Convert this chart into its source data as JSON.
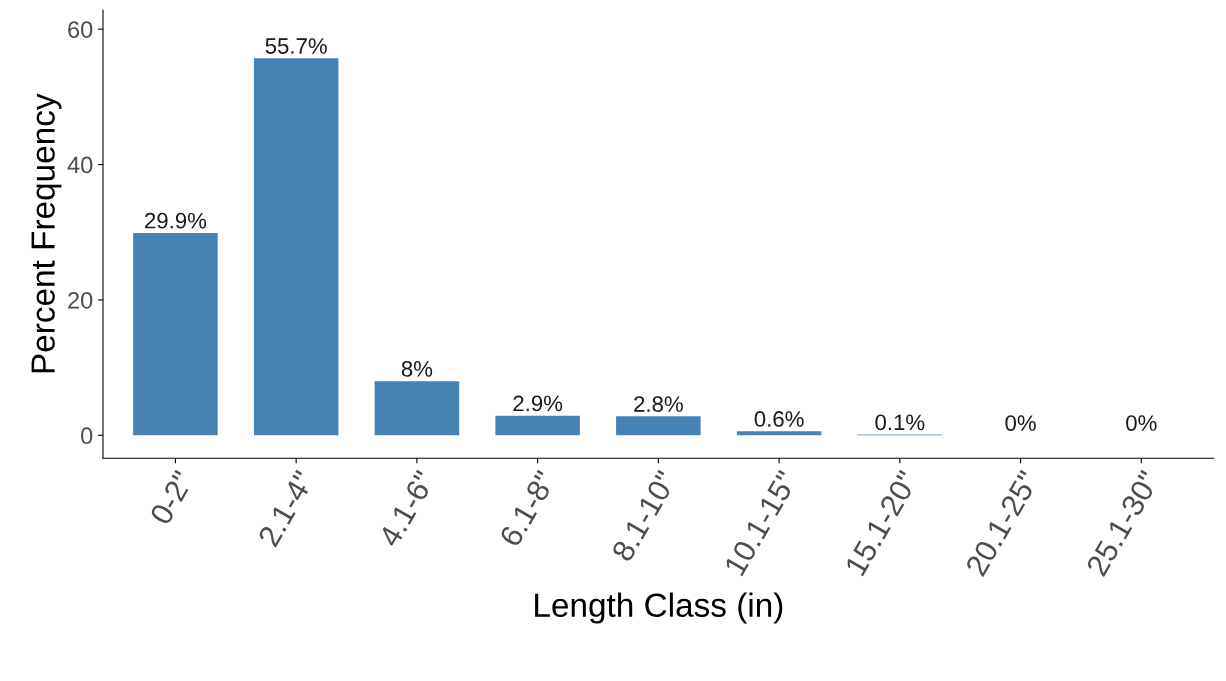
{
  "chart_data": {
    "type": "bar",
    "xlabel": "Length Class (in)",
    "ylabel": "Percent Frequency",
    "categories": [
      "0-2\"",
      "2.1-4\"",
      "4.1-6\"",
      "6.1-8\"",
      "8.1-10\"",
      "10.1-15\"",
      "15.1-20\"",
      "20.1-25\"",
      "25.1-30\""
    ],
    "values": [
      29.9,
      55.7,
      8,
      2.9,
      2.8,
      0.6,
      0.1,
      0,
      0
    ],
    "value_labels": [
      "29.9%",
      "55.7%",
      "8%",
      "2.9%",
      "2.8%",
      "0.6%",
      "0.1%",
      "0%",
      "0%"
    ],
    "color": "#4682b4",
    "ylim": [
      -3.4,
      62.8
    ],
    "yticks": [
      0,
      20,
      40,
      60
    ],
    "grid": false,
    "legend": false
  }
}
